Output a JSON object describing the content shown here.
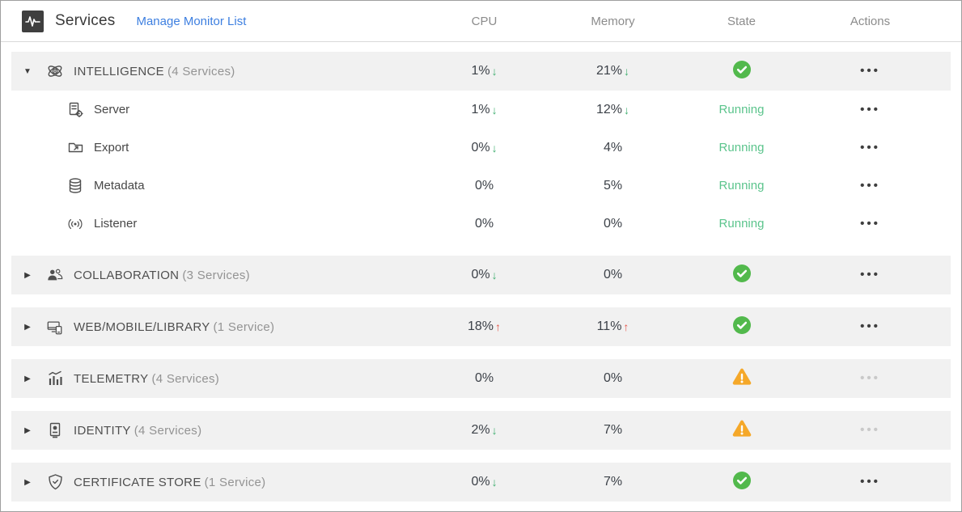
{
  "header": {
    "app_icon": "activity-pulse-icon",
    "title": "Services",
    "link_label": "Manage Monitor List",
    "columns": [
      "CPU",
      "Memory",
      "State",
      "Actions"
    ]
  },
  "colors": {
    "ok_green": "#52b94c",
    "warning_orange": "#f5a829",
    "trend_down_green": "#3fae6f",
    "trend_up_red": "#e4564a",
    "running_green": "#5bc48c",
    "link_blue": "#3d7fe0",
    "dots_enabled": "#3f3f3f",
    "dots_disabled": "#c9c9c9",
    "group_band": "#f1f1f1"
  },
  "groups": [
    {
      "name": "INTELLIGENCE",
      "count_label": "(4 Services)",
      "icon": "atom-gear-icon",
      "expanded": true,
      "cpu": {
        "value": "1%",
        "trend": "down"
      },
      "memory": {
        "value": "21%",
        "trend": "down"
      },
      "state": "ok",
      "actions_enabled": true,
      "children": [
        {
          "name": "Server",
          "icon": "server-gear-icon",
          "cpu": {
            "value": "1%",
            "trend": "down"
          },
          "memory": {
            "value": "12%",
            "trend": "down"
          },
          "state_label": "Running"
        },
        {
          "name": "Export",
          "icon": "export-folder-icon",
          "cpu": {
            "value": "0%",
            "trend": "down"
          },
          "memory": {
            "value": "4%",
            "trend": null
          },
          "state_label": "Running"
        },
        {
          "name": "Metadata",
          "icon": "database-icon",
          "cpu": {
            "value": "0%",
            "trend": null
          },
          "memory": {
            "value": "5%",
            "trend": null
          },
          "state_label": "Running"
        },
        {
          "name": "Listener",
          "icon": "broadcast-icon",
          "cpu": {
            "value": "0%",
            "trend": null
          },
          "memory": {
            "value": "0%",
            "trend": null
          },
          "state_label": "Running"
        }
      ]
    },
    {
      "name": "COLLABORATION",
      "count_label": "(3 Services)",
      "icon": "people-icon",
      "expanded": false,
      "cpu": {
        "value": "0%",
        "trend": "down"
      },
      "memory": {
        "value": "0%",
        "trend": null
      },
      "state": "ok",
      "actions_enabled": true,
      "children": []
    },
    {
      "name": "WEB/MOBILE/LIBRARY",
      "count_label": "(1 Service)",
      "icon": "devices-icon",
      "expanded": false,
      "cpu": {
        "value": "18%",
        "trend": "up"
      },
      "memory": {
        "value": "11%",
        "trend": "up"
      },
      "state": "ok",
      "actions_enabled": true,
      "children": []
    },
    {
      "name": "TELEMETRY",
      "count_label": "(4 Services)",
      "icon": "bar-chart-icon",
      "expanded": false,
      "cpu": {
        "value": "0%",
        "trend": null
      },
      "memory": {
        "value": "0%",
        "trend": null
      },
      "state": "warning",
      "actions_enabled": false,
      "children": []
    },
    {
      "name": "IDENTITY",
      "count_label": "(4 Services)",
      "icon": "id-card-icon",
      "expanded": false,
      "cpu": {
        "value": "2%",
        "trend": "down"
      },
      "memory": {
        "value": "7%",
        "trend": null
      },
      "state": "warning",
      "actions_enabled": false,
      "children": []
    },
    {
      "name": "CERTIFICATE STORE",
      "count_label": "(1 Service)",
      "icon": "shield-check-icon",
      "expanded": false,
      "cpu": {
        "value": "0%",
        "trend": "down"
      },
      "memory": {
        "value": "7%",
        "trend": null
      },
      "state": "ok",
      "actions_enabled": true,
      "children": []
    }
  ]
}
